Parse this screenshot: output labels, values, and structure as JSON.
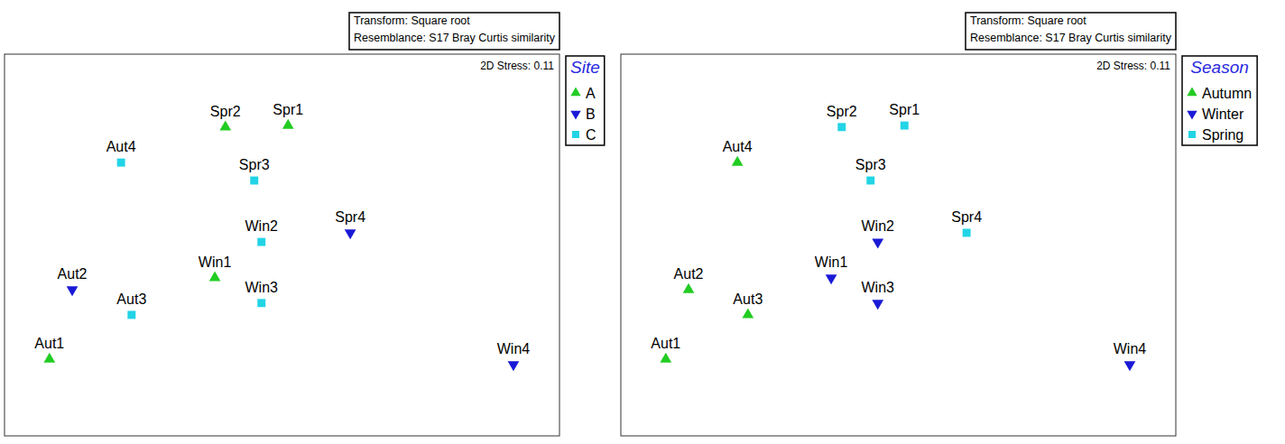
{
  "chart_data": [
    {
      "type": "scatter",
      "annotations": [
        "Transform: Square root",
        "Resemblance: S17 Bray Curtis similarity"
      ],
      "stress_text": "2D Stress: 0.11",
      "legend_title": "Site",
      "legend": "outside-right",
      "tick_labels": false,
      "xlim": [
        0,
        100
      ],
      "ylim": [
        0,
        100
      ],
      "series": [
        {
          "name": "A",
          "color": "#22cc22",
          "marker": "triangle-up",
          "labels": [
            "Spr2",
            "Spr1",
            "Win1",
            "Aut1"
          ],
          "x": [
            39.8,
            51.1,
            37.9,
            8.1
          ],
          "values": [
            80.9,
            81.3,
            41.4,
            20.1
          ]
        },
        {
          "name": "B",
          "color": "#1a1ad6",
          "marker": "triangle-down",
          "labels": [
            "Spr4",
            "Aut2",
            "Win4"
          ],
          "x": [
            62.3,
            12.2,
            91.7
          ],
          "values": [
            53.2,
            38.3,
            18.7
          ]
        },
        {
          "name": "C",
          "color": "#22d4e6",
          "marker": "square",
          "labels": [
            "Aut4",
            "Spr3",
            "Win2",
            "Win3",
            "Aut3"
          ],
          "x": [
            21.0,
            45.0,
            46.3,
            46.3,
            22.9
          ],
          "values": [
            71.6,
            66.9,
            50.8,
            34.8,
            31.7
          ]
        }
      ]
    },
    {
      "type": "scatter",
      "annotations": [
        "Transform: Square root",
        "Resemblance: S17 Bray Curtis similarity"
      ],
      "stress_text": "2D Stress: 0.11",
      "legend_title": "Season",
      "legend": "outside-right",
      "tick_labels": false,
      "xlim": [
        0,
        100
      ],
      "ylim": [
        0,
        100
      ],
      "series": [
        {
          "name": "Autumn",
          "color": "#22cc22",
          "marker": "triangle-up",
          "labels": [
            "Aut4",
            "Aut2",
            "Aut3",
            "Aut1"
          ],
          "x": [
            21.0,
            12.2,
            22.9,
            8.1
          ],
          "values": [
            71.6,
            38.3,
            31.7,
            20.1
          ]
        },
        {
          "name": "Winter",
          "color": "#1a1ad6",
          "marker": "triangle-down",
          "labels": [
            "Win2",
            "Win1",
            "Win3",
            "Win4"
          ],
          "x": [
            46.3,
            37.9,
            46.3,
            91.7
          ],
          "values": [
            50.8,
            41.4,
            34.8,
            18.7
          ]
        },
        {
          "name": "Spring",
          "color": "#22d4e6",
          "marker": "square",
          "labels": [
            "Spr2",
            "Spr1",
            "Spr3",
            "Spr4"
          ],
          "x": [
            39.8,
            51.1,
            45.0,
            62.3
          ],
          "values": [
            80.9,
            81.3,
            66.9,
            53.2
          ]
        }
      ]
    }
  ]
}
